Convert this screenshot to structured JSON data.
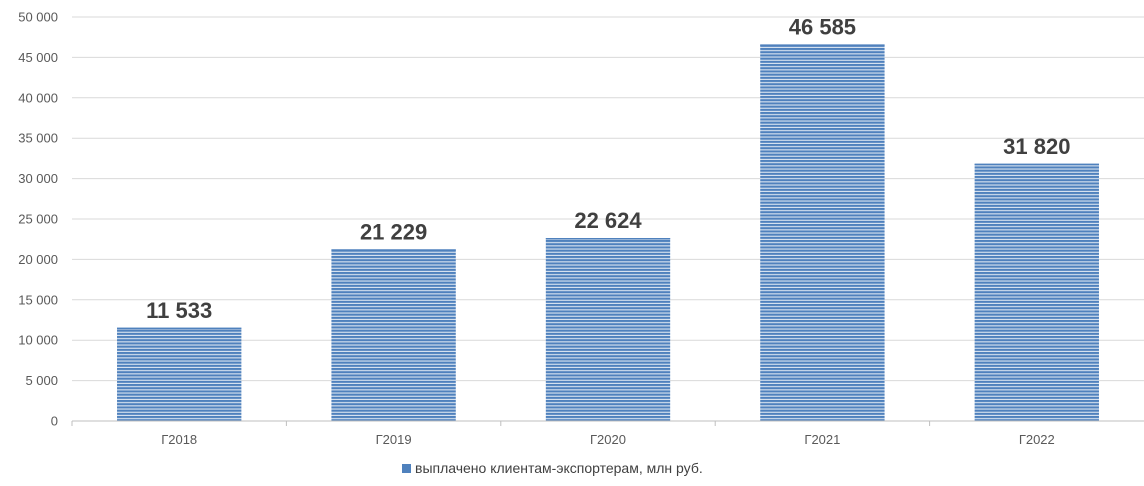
{
  "chart_data": {
    "type": "bar",
    "categories": [
      "Г2018",
      "Г2019",
      "Г2020",
      "Г2021",
      "Г2022"
    ],
    "series": [
      {
        "name": "выплачено клиентам-экспортерам, млн руб.",
        "values": [
          11533,
          21229,
          22624,
          46585,
          31820
        ],
        "data_labels": [
          "11 533",
          "21 229",
          "22 624",
          "46 585",
          "31 820"
        ],
        "color": "#4f81bd"
      }
    ],
    "ylim": [
      0,
      50000
    ],
    "yticks": [
      0,
      5000,
      10000,
      15000,
      20000,
      25000,
      30000,
      35000,
      40000,
      45000,
      50000
    ],
    "ytick_labels": [
      "0",
      "5 000",
      "10 000",
      "15 000",
      "20 000",
      "25 000",
      "30 000",
      "35 000",
      "40 000",
      "45 000",
      "50 000"
    ],
    "grid": true,
    "legend_position": "bottom"
  },
  "colors": {
    "bar": "#4f81bd",
    "bar_stripe": "#dbe5f1",
    "grid": "#d9d9d9",
    "axis": "#bfbfbf"
  }
}
